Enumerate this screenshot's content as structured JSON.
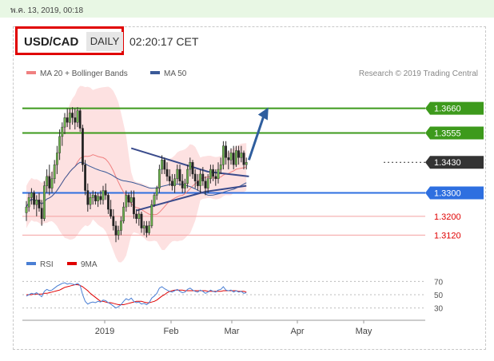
{
  "header": {
    "timestamp": "พ.ค. 13, 2019, 00:18",
    "pair": "USD/CAD",
    "period": "DAILY",
    "time": "02:20:17 CET"
  },
  "chart_data": [
    {
      "type": "candlestick",
      "legend": [
        {
          "name": "MA 20 + Bollinger Bands",
          "color": "#f08080"
        },
        {
          "name": "MA 50",
          "color": "#3a5a98"
        }
      ],
      "credit": "Research © 2019 Trading Central",
      "x_labels": [
        "2019",
        "Feb",
        "Mar",
        "Apr",
        "May"
      ],
      "ylim": [
        1.305,
        1.373
      ],
      "candles": [
        [
          1.3215,
          1.3265,
          1.318,
          1.324
        ],
        [
          1.324,
          1.33,
          1.322,
          1.328
        ],
        [
          1.328,
          1.332,
          1.325,
          1.33
        ],
        [
          1.33,
          1.331,
          1.323,
          1.325
        ],
        [
          1.325,
          1.329,
          1.32,
          1.327
        ],
        [
          1.327,
          1.33,
          1.322,
          1.3235
        ],
        [
          1.3235,
          1.327,
          1.316,
          1.319
        ],
        [
          1.319,
          1.335,
          1.318,
          1.333
        ],
        [
          1.333,
          1.34,
          1.33,
          1.337
        ],
        [
          1.337,
          1.342,
          1.329,
          1.332
        ],
        [
          1.332,
          1.339,
          1.33,
          1.336
        ],
        [
          1.336,
          1.344,
          1.334,
          1.342
        ],
        [
          1.342,
          1.35,
          1.338,
          1.347
        ],
        [
          1.347,
          1.357,
          1.344,
          1.354
        ],
        [
          1.354,
          1.36,
          1.35,
          1.358
        ],
        [
          1.358,
          1.364,
          1.355,
          1.362
        ],
        [
          1.362,
          1.366,
          1.358,
          1.36
        ],
        [
          1.36,
          1.366,
          1.357,
          1.364
        ],
        [
          1.364,
          1.3665,
          1.359,
          1.362
        ],
        [
          1.362,
          1.366,
          1.357,
          1.36
        ],
        [
          1.36,
          1.3665,
          1.358,
          1.365
        ],
        [
          1.365,
          1.366,
          1.356,
          1.3575
        ],
        [
          1.3575,
          1.359,
          1.339,
          1.342
        ],
        [
          1.342,
          1.344,
          1.329,
          1.331
        ],
        [
          1.331,
          1.334,
          1.322,
          1.325
        ],
        [
          1.325,
          1.33,
          1.323,
          1.328
        ],
        [
          1.328,
          1.331,
          1.325,
          1.329
        ],
        [
          1.329,
          1.3305,
          1.325,
          1.3265
        ],
        [
          1.3265,
          1.33,
          1.324,
          1.3285
        ],
        [
          1.3285,
          1.331,
          1.325,
          1.327
        ],
        [
          1.327,
          1.333,
          1.325,
          1.331
        ],
        [
          1.331,
          1.334,
          1.327,
          1.329
        ],
        [
          1.329,
          1.33,
          1.321,
          1.323
        ],
        [
          1.323,
          1.327,
          1.319,
          1.32
        ],
        [
          1.32,
          1.323,
          1.314,
          1.316
        ],
        [
          1.316,
          1.318,
          1.309,
          1.312
        ],
        [
          1.312,
          1.316,
          1.31,
          1.314
        ],
        [
          1.314,
          1.32,
          1.312,
          1.318
        ],
        [
          1.318,
          1.326,
          1.317,
          1.324
        ],
        [
          1.324,
          1.331,
          1.322,
          1.329
        ],
        [
          1.329,
          1.33,
          1.324,
          1.326
        ],
        [
          1.326,
          1.331,
          1.324,
          1.328
        ],
        [
          1.328,
          1.331,
          1.319,
          1.321
        ],
        [
          1.321,
          1.323,
          1.317,
          1.319
        ],
        [
          1.319,
          1.323,
          1.316,
          1.321
        ],
        [
          1.321,
          1.322,
          1.313,
          1.315
        ],
        [
          1.315,
          1.318,
          1.312,
          1.316
        ],
        [
          1.316,
          1.318,
          1.311,
          1.313
        ],
        [
          1.313,
          1.318,
          1.312,
          1.316
        ],
        [
          1.316,
          1.327,
          1.315,
          1.325
        ],
        [
          1.325,
          1.33,
          1.324,
          1.329
        ],
        [
          1.329,
          1.333,
          1.327,
          1.332
        ],
        [
          1.332,
          1.342,
          1.33,
          1.34
        ],
        [
          1.34,
          1.346,
          1.338,
          1.344
        ],
        [
          1.344,
          1.345,
          1.338,
          1.34
        ],
        [
          1.34,
          1.343,
          1.335,
          1.337
        ],
        [
          1.337,
          1.34,
          1.333,
          1.335
        ],
        [
          1.335,
          1.338,
          1.331,
          1.333
        ],
        [
          1.333,
          1.338,
          1.33,
          1.336
        ],
        [
          1.336,
          1.342,
          1.334,
          1.34
        ],
        [
          1.34,
          1.342,
          1.333,
          1.335
        ],
        [
          1.335,
          1.338,
          1.33,
          1.332
        ],
        [
          1.332,
          1.336,
          1.33,
          1.334
        ],
        [
          1.334,
          1.342,
          1.332,
          1.34
        ],
        [
          1.34,
          1.345,
          1.337,
          1.343
        ],
        [
          1.343,
          1.344,
          1.336,
          1.338
        ],
        [
          1.338,
          1.34,
          1.332,
          1.335
        ],
        [
          1.335,
          1.338,
          1.331,
          1.333
        ],
        [
          1.333,
          1.34,
          1.33,
          1.338
        ],
        [
          1.338,
          1.341,
          1.333,
          1.335
        ],
        [
          1.335,
          1.337,
          1.329,
          1.332
        ],
        [
          1.332,
          1.338,
          1.33,
          1.336
        ],
        [
          1.336,
          1.342,
          1.334,
          1.34
        ],
        [
          1.34,
          1.342,
          1.335,
          1.337
        ],
        [
          1.337,
          1.34,
          1.333,
          1.336
        ],
        [
          1.336,
          1.343,
          1.334,
          1.34
        ],
        [
          1.34,
          1.345,
          1.338,
          1.342
        ],
        [
          1.342,
          1.352,
          1.34,
          1.35
        ],
        [
          1.35,
          1.352,
          1.342,
          1.345
        ],
        [
          1.345,
          1.348,
          1.34,
          1.344
        ],
        [
          1.344,
          1.349,
          1.342,
          1.347
        ],
        [
          1.347,
          1.35,
          1.34,
          1.342
        ],
        [
          1.342,
          1.35,
          1.341,
          1.348
        ],
        [
          1.348,
          1.35,
          1.342,
          1.345
        ],
        [
          1.345,
          1.35,
          1.343,
          1.347
        ],
        [
          1.347,
          1.348,
          1.34,
          1.342
        ],
        [
          1.342,
          1.345,
          1.34,
          1.343
        ]
      ],
      "levels": [
        {
          "price": 1.366,
          "label": "1.3660",
          "color": "#3d9a1c",
          "style": "solid"
        },
        {
          "price": 1.3555,
          "label": "1.3555",
          "color": "#3d9a1c",
          "style": "solid"
        },
        {
          "price": 1.343,
          "label": "1.3430",
          "color": "#333333",
          "style": "dotted"
        },
        {
          "price": 1.33,
          "label": "1.3300",
          "color": "#2e6fe0",
          "style": "solid"
        },
        {
          "price": 1.32,
          "label": "1.3200",
          "color": "#e06060",
          "style": "thin"
        },
        {
          "price": 1.312,
          "label": "1.3120",
          "color": "#e06060",
          "style": "thin"
        }
      ],
      "trendlines": [
        {
          "from": [
            41,
            1.349
          ],
          "to": [
            71,
            1.339
          ]
        },
        {
          "from": [
            71,
            1.339
          ],
          "to": [
            87,
            1.337
          ]
        },
        {
          "from": [
            43,
            1.3225
          ],
          "to": [
            70,
            1.3305
          ]
        },
        {
          "from": [
            70,
            1.3305
          ],
          "to": [
            86,
            1.333
          ]
        }
      ],
      "forecast_arrow": {
        "from": [
          87,
          1.344
        ],
        "to": [
          94,
          1.365
        ]
      }
    },
    {
      "type": "line",
      "name": "RSI",
      "legend": [
        {
          "name": "RSI",
          "color": "#4a7fd4"
        },
        {
          "name": "9MA",
          "color": "#e00000"
        }
      ],
      "ticks": [
        70,
        50,
        30
      ],
      "ylim": [
        20,
        80
      ],
      "rsi": [
        48,
        50,
        52,
        51,
        53,
        50,
        47,
        55,
        58,
        56,
        57,
        60,
        63,
        65,
        67,
        68,
        66,
        67,
        66,
        65,
        67,
        64,
        50,
        40,
        36,
        38,
        39,
        38,
        40,
        39,
        42,
        41,
        38,
        36,
        33,
        30,
        32,
        35,
        40,
        44,
        42,
        45,
        40,
        38,
        39,
        36,
        37,
        35,
        38,
        45,
        48,
        52,
        60,
        62,
        59,
        57,
        55,
        54,
        56,
        58,
        55,
        53,
        54,
        58,
        60,
        57,
        55,
        54,
        57,
        55,
        52,
        54,
        57,
        55,
        54,
        57,
        58,
        62,
        57,
        56,
        57,
        54,
        56,
        54,
        55,
        52,
        53
      ],
      "ma": [
        50,
        50,
        50,
        51,
        51,
        51,
        51,
        52,
        52,
        53,
        54,
        55,
        56,
        57,
        59,
        61,
        62,
        63,
        64,
        65,
        65,
        64,
        62,
        59,
        56,
        52,
        49,
        46,
        43,
        40,
        40,
        39,
        38,
        38,
        37,
        36,
        35,
        35,
        35,
        36,
        37,
        38,
        39,
        40,
        40,
        40,
        39,
        38,
        38,
        39,
        40,
        42,
        45,
        48,
        50,
        53,
        55,
        56,
        57,
        57,
        57,
        57,
        56,
        56,
        56,
        56,
        56,
        56,
        56,
        56,
        56,
        55,
        55,
        55,
        55,
        55,
        55,
        56,
        56,
        56,
        56,
        56,
        56,
        55,
        55,
        55,
        54
      ]
    }
  ]
}
